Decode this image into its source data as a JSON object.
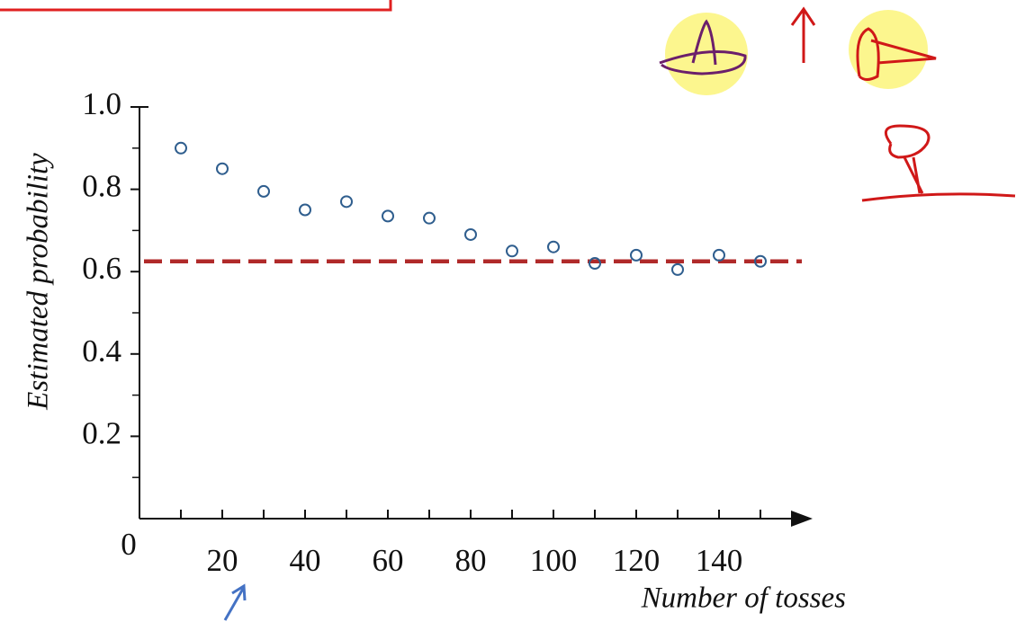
{
  "chart_data": {
    "type": "scatter",
    "x_label": "Number of tosses",
    "y_label": "Estimated probability",
    "x": [
      10,
      20,
      30,
      40,
      50,
      60,
      70,
      80,
      90,
      100,
      110,
      120,
      130,
      140,
      150
    ],
    "values": [
      0.9,
      0.85,
      0.795,
      0.75,
      0.77,
      0.735,
      0.73,
      0.69,
      0.65,
      0.66,
      0.62,
      0.64,
      0.605,
      0.64,
      0.625
    ],
    "color": "#2f5e8e",
    "xlim": [
      0,
      160
    ],
    "ylim": [
      0,
      1
    ],
    "xticks": [
      0,
      20,
      40,
      60,
      80,
      100,
      120,
      140
    ],
    "xticks_minor": [
      10,
      30,
      50,
      70,
      90,
      110,
      130,
      150
    ],
    "yticks": [
      {
        "value": 0.2,
        "label": "0.2"
      },
      {
        "value": 0.4,
        "label": "0.4"
      },
      {
        "value": 0.6,
        "label": "0.6"
      },
      {
        "value": 0.8,
        "label": "0.8"
      },
      {
        "value": 1,
        "label": "1.0"
      }
    ],
    "yticks_minor": [
      0.1,
      0.3,
      0.5,
      0.7,
      0.9
    ],
    "reference_line": {
      "value": 0.625,
      "color": "#b02a2a",
      "style": "dashed"
    }
  }
}
